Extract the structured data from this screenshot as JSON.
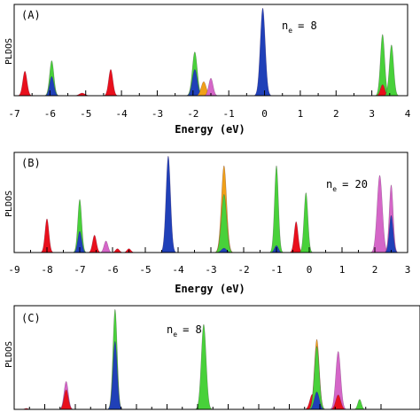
{
  "colors": {
    "red": "#e8101c",
    "green": "#48d13a",
    "blue": "#2040b8",
    "magenta": "#d566c8",
    "orange": "#f0a018"
  },
  "chart_data": [
    {
      "type": "area",
      "panel_label": "(A)",
      "ne_base": "n",
      "ne_sub": "e",
      "ne_value": "= 8",
      "ylabel": "PLDOS",
      "xlabel": "Energy (eV)",
      "xlim": [
        -7,
        4
      ],
      "xticks": [
        -7,
        -6,
        -5,
        -4,
        -3,
        -2,
        -1,
        0,
        1,
        2,
        3,
        4
      ],
      "tick_labels": [
        "-7",
        "-6",
        "-5",
        "-4",
        "-3",
        "-2",
        "-1",
        "0",
        "1",
        "2",
        "3",
        "4"
      ],
      "ylim": [
        0,
        1
      ],
      "peaks": [
        {
          "x": -6.7,
          "height": 0.28,
          "width": 0.06,
          "stack": [
            {
              "color": "red",
              "fraction": 1.0
            }
          ]
        },
        {
          "x": -5.95,
          "height": 0.4,
          "width": 0.06,
          "stack": [
            {
              "color": "blue",
              "fraction": 0.55
            },
            {
              "color": "green",
              "fraction": 0.45
            }
          ]
        },
        {
          "x": -5.1,
          "height": 0.03,
          "width": 0.08,
          "stack": [
            {
              "color": "red",
              "fraction": 1.0
            }
          ]
        },
        {
          "x": -4.3,
          "height": 0.3,
          "width": 0.06,
          "stack": [
            {
              "color": "red",
              "fraction": 1.0
            }
          ]
        },
        {
          "x": -1.95,
          "height": 0.5,
          "width": 0.07,
          "stack": [
            {
              "color": "blue",
              "fraction": 0.6
            },
            {
              "color": "green",
              "fraction": 0.4
            }
          ]
        },
        {
          "x": -1.7,
          "height": 0.16,
          "width": 0.07,
          "stack": [
            {
              "color": "orange",
              "fraction": 1.0
            }
          ]
        },
        {
          "x": -1.5,
          "height": 0.2,
          "width": 0.06,
          "stack": [
            {
              "color": "magenta",
              "fraction": 1.0
            }
          ]
        },
        {
          "x": -0.05,
          "height": 1.0,
          "width": 0.07,
          "stack": [
            {
              "color": "blue",
              "fraction": 1.0
            }
          ]
        },
        {
          "x": 3.3,
          "height": 0.7,
          "width": 0.06,
          "stack": [
            {
              "color": "red",
              "fraction": 0.18
            },
            {
              "color": "green",
              "fraction": 0.82
            }
          ]
        },
        {
          "x": 3.55,
          "height": 0.58,
          "width": 0.06,
          "stack": [
            {
              "color": "green",
              "fraction": 1.0
            }
          ]
        }
      ]
    },
    {
      "type": "area",
      "panel_label": "(B)",
      "ne_base": "n",
      "ne_sub": "e",
      "ne_value": "= 20",
      "ylabel": "PLDOS",
      "xlabel": "Energy (eV)",
      "xlim": [
        -9,
        3
      ],
      "xticks": [
        -9,
        -8,
        -7,
        -6,
        -5,
        -4,
        -3,
        -2,
        -1,
        0,
        1,
        2,
        3
      ],
      "tick_labels": [
        "-9",
        "-8",
        "-7",
        "-6",
        "-5",
        "-4",
        "-3",
        "-2",
        "-1",
        "0",
        "1",
        "2",
        "3"
      ],
      "ylim": [
        0,
        1
      ],
      "peaks": [
        {
          "x": -8.0,
          "height": 0.35,
          "width": 0.06,
          "stack": [
            {
              "color": "red",
              "fraction": 1.0
            }
          ]
        },
        {
          "x": -7.0,
          "height": 0.55,
          "width": 0.06,
          "stack": [
            {
              "color": "blue",
              "fraction": 0.4
            },
            {
              "color": "green",
              "fraction": 0.6
            }
          ]
        },
        {
          "x": -6.55,
          "height": 0.18,
          "width": 0.06,
          "stack": [
            {
              "color": "red",
              "fraction": 1.0
            }
          ]
        },
        {
          "x": -6.2,
          "height": 0.12,
          "width": 0.06,
          "stack": [
            {
              "color": "magenta",
              "fraction": 1.0
            }
          ]
        },
        {
          "x": -5.85,
          "height": 0.04,
          "width": 0.06,
          "stack": [
            {
              "color": "red",
              "fraction": 1.0
            }
          ]
        },
        {
          "x": -5.5,
          "height": 0.04,
          "width": 0.06,
          "stack": [
            {
              "color": "red",
              "fraction": 1.0
            }
          ]
        },
        {
          "x": -4.3,
          "height": 1.0,
          "width": 0.07,
          "stack": [
            {
              "color": "blue",
              "fraction": 1.0
            }
          ]
        },
        {
          "x": -2.6,
          "height": 0.9,
          "width": 0.08,
          "stack": [
            {
              "color": "blue",
              "fraction": 0.05
            },
            {
              "color": "green",
              "fraction": 0.62
            },
            {
              "color": "orange",
              "fraction": 0.33
            }
          ]
        },
        {
          "x": -1.0,
          "height": 0.9,
          "width": 0.06,
          "stack": [
            {
              "color": "blue",
              "fraction": 0.08
            },
            {
              "color": "green",
              "fraction": 0.92
            }
          ]
        },
        {
          "x": -0.4,
          "height": 0.32,
          "width": 0.06,
          "stack": [
            {
              "color": "red",
              "fraction": 1.0
            }
          ]
        },
        {
          "x": -0.1,
          "height": 0.62,
          "width": 0.06,
          "stack": [
            {
              "color": "green",
              "fraction": 1.0
            }
          ]
        },
        {
          "x": 2.15,
          "height": 0.8,
          "width": 0.08,
          "stack": [
            {
              "color": "magenta",
              "fraction": 1.0
            }
          ]
        },
        {
          "x": 2.5,
          "height": 0.7,
          "width": 0.06,
          "stack": [
            {
              "color": "blue",
              "fraction": 0.55
            },
            {
              "color": "magenta",
              "fraction": 0.45
            }
          ]
        }
      ]
    },
    {
      "type": "area",
      "panel_label": "(C)",
      "ne_base": "n",
      "ne_sub": "e",
      "ne_value": "= 8",
      "ylabel": "PLDOS",
      "xlim": [
        -9,
        3
      ],
      "xticks": [
        -9,
        -8,
        -7,
        -6,
        -5,
        -4,
        -3,
        -2,
        -1,
        0,
        1,
        2,
        3
      ],
      "ylim": [
        0,
        1
      ],
      "peaks": [
        {
          "x": -8.6,
          "height": 0.01,
          "width": 0.06,
          "stack": [
            {
              "color": "red",
              "fraction": 1.0
            }
          ]
        },
        {
          "x": -7.3,
          "height": 0.28,
          "width": 0.07,
          "stack": [
            {
              "color": "red",
              "fraction": 0.7
            },
            {
              "color": "magenta",
              "fraction": 0.3
            }
          ]
        },
        {
          "x": -5.7,
          "height": 1.0,
          "width": 0.07,
          "stack": [
            {
              "color": "blue",
              "fraction": 0.68
            },
            {
              "color": "green",
              "fraction": 0.32
            }
          ]
        },
        {
          "x": -2.8,
          "height": 0.85,
          "width": 0.08,
          "stack": [
            {
              "color": "green",
              "fraction": 1.0
            }
          ]
        },
        {
          "x": 0.75,
          "height": 0.15,
          "width": 0.08,
          "stack": [
            {
              "color": "red",
              "fraction": 1.0
            }
          ]
        },
        {
          "x": 0.9,
          "height": 0.7,
          "width": 0.08,
          "stack": [
            {
              "color": "blue",
              "fraction": 0.25
            },
            {
              "color": "green",
              "fraction": 0.65
            },
            {
              "color": "orange",
              "fraction": 0.1
            }
          ]
        },
        {
          "x": 1.6,
          "height": 0.58,
          "width": 0.08,
          "stack": [
            {
              "color": "red",
              "fraction": 0.25
            },
            {
              "color": "magenta",
              "fraction": 0.75
            }
          ]
        },
        {
          "x": 2.3,
          "height": 0.1,
          "width": 0.06,
          "stack": [
            {
              "color": "green",
              "fraction": 1.0
            }
          ]
        }
      ]
    }
  ]
}
